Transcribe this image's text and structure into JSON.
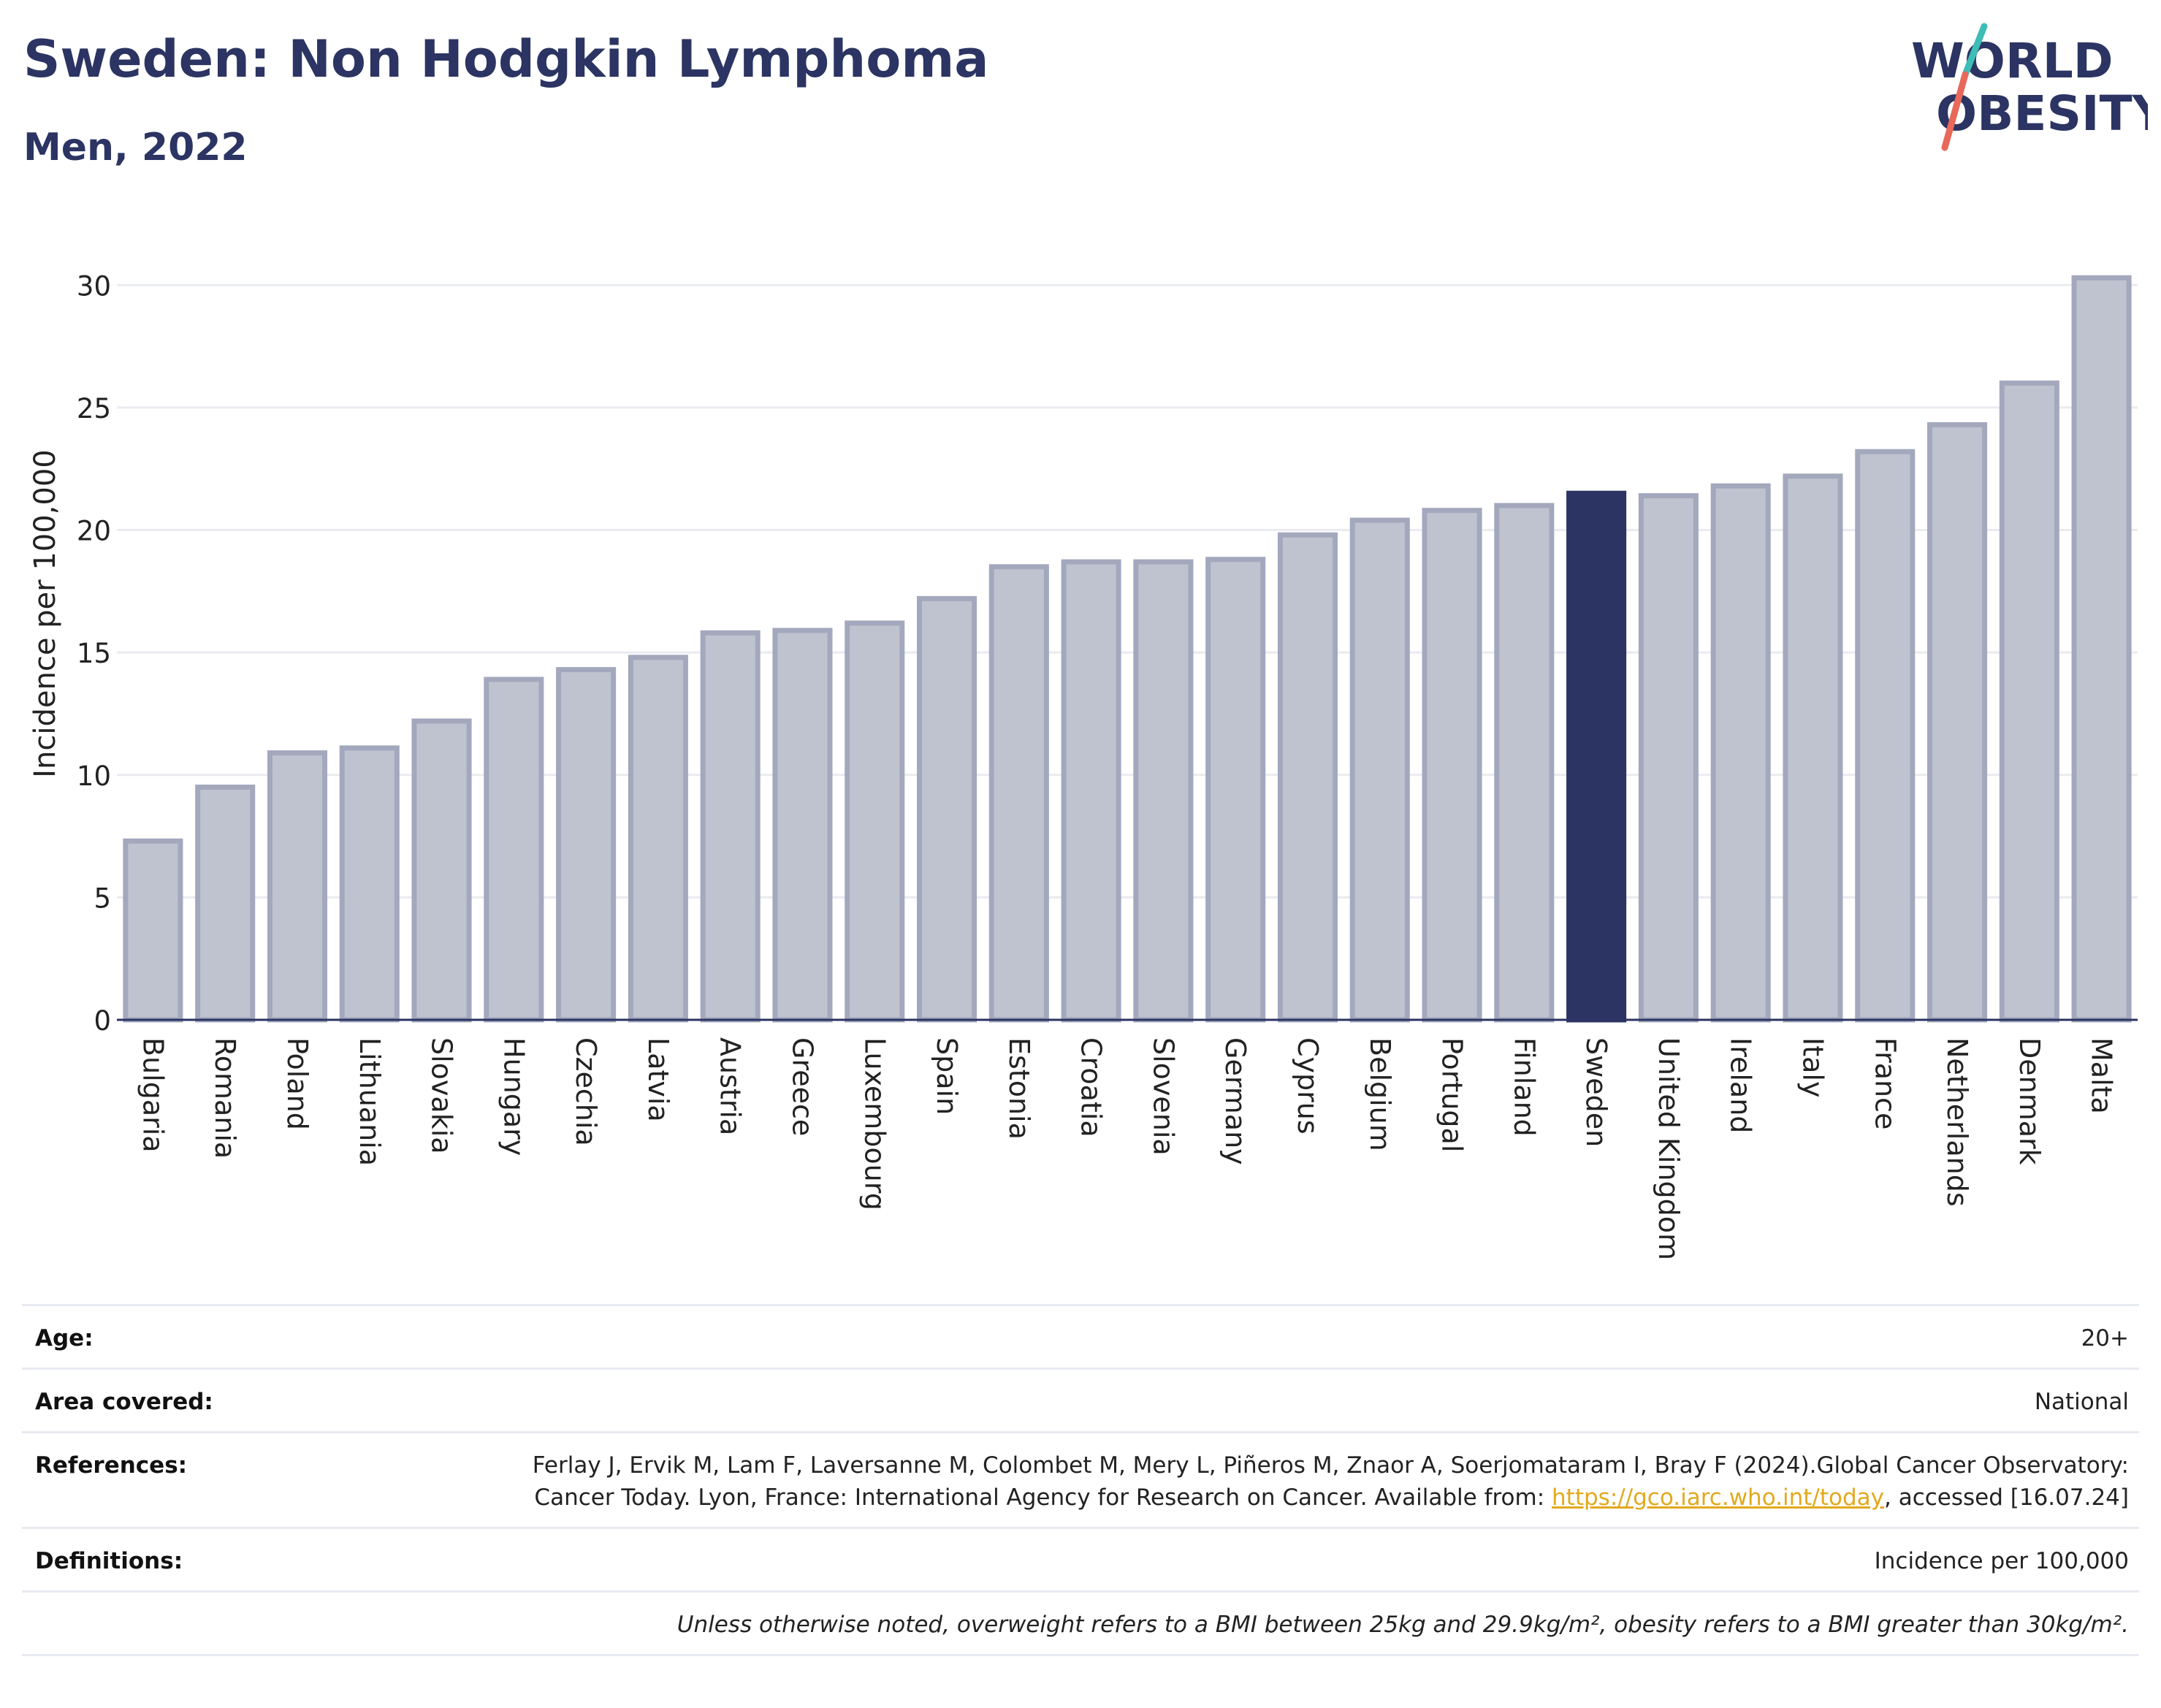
{
  "header": {
    "title": "Sweden: Non Hodgkin Lymphoma",
    "subtitle": "Men, 2022"
  },
  "logo": {
    "line1": "WORLD",
    "line2": "OBESITY"
  },
  "colors": {
    "bar_fill": "#bfc3d0",
    "bar_stroke": "#a3a8bd",
    "highlight": "#2b3462",
    "grid": "#e9ebf0",
    "title": "#2b3462",
    "logo_teal": "#3dbdb5",
    "logo_coral": "#e8685a"
  },
  "chart_data": {
    "type": "bar",
    "categories": [
      "Bulgaria",
      "Romania",
      "Poland",
      "Lithuania",
      "Slovakia",
      "Hungary",
      "Czechia",
      "Latvia",
      "Austria",
      "Greece",
      "Luxembourg",
      "Spain",
      "Estonia",
      "Croatia",
      "Slovenia",
      "Germany",
      "Cyprus",
      "Belgium",
      "Portugal",
      "Finland",
      "Sweden",
      "United Kingdom",
      "Ireland",
      "Italy",
      "France",
      "Netherlands",
      "Denmark",
      "Malta"
    ],
    "values": [
      7.3,
      9.5,
      10.9,
      11.1,
      12.2,
      13.9,
      14.3,
      14.8,
      15.8,
      15.9,
      16.2,
      17.2,
      18.5,
      18.7,
      18.7,
      18.8,
      19.8,
      20.4,
      20.8,
      21.0,
      21.5,
      21.4,
      21.8,
      22.2,
      23.2,
      24.3,
      26.0,
      30.3
    ],
    "highlight": "Sweden",
    "ylabel": "Incidence per 100,000",
    "xlabel": "",
    "ylim": [
      0,
      31.5
    ],
    "yticks": [
      0,
      5,
      10,
      15,
      20,
      25,
      30
    ],
    "grid": true
  },
  "info": {
    "age_label": "Age:",
    "age_value": "20+",
    "area_label": "Area covered:",
    "area_value": "National",
    "ref_label": "References:",
    "ref_text_1": "Ferlay J, Ervik M, Lam F, Laversanne M, Colombet M, Mery L, Piñeros M, Znaor A, Soerjomataram I, Bray F (2024).Global Cancer Observatory: Cancer Today. Lyon, France: International Agency for Research on Cancer. Available from: ",
    "ref_link": "https://gco.iarc.who.int/today",
    "ref_text_2": ", accessed [16.07.24]",
    "def_label": "Definitions:",
    "def_value": "Incidence per 100,000",
    "note": "Unless otherwise noted, overweight refers to a BMI between 25kg and 29.9kg/m², obesity refers to a BMI greater than 30kg/m²."
  }
}
